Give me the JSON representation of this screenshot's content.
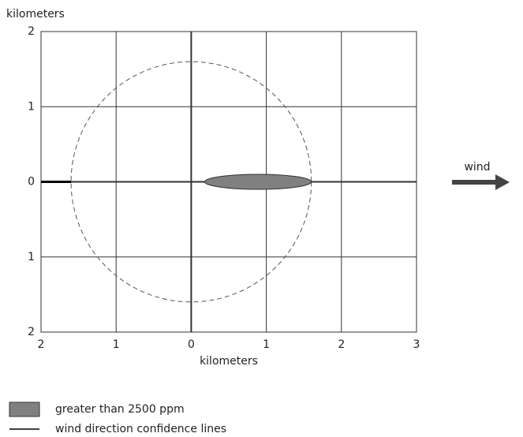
{
  "chart_data": {
    "type": "threat-zone",
    "y_label": "kilometers",
    "x_label": "kilometers",
    "xlim": [
      -2,
      3
    ],
    "ylim": [
      -2,
      2
    ],
    "xticks": [
      {
        "value": -2,
        "label": "2"
      },
      {
        "value": -1,
        "label": "1"
      },
      0,
      1,
      2,
      3
    ],
    "yticks": [
      {
        "value": -2,
        "label": "2"
      },
      {
        "value": -1,
        "label": "1"
      },
      0,
      1,
      2
    ],
    "grid": true,
    "threat_zone": {
      "name": "greater than 2500 ppm",
      "color": "#808080",
      "x_start": 0.18,
      "x_end": 1.6,
      "half_width": 0.1
    },
    "confidence_circle_radius": 1.6,
    "confidence_lines": {
      "name": "wind direction confidence lines"
    },
    "wind_label": "wind"
  }
}
